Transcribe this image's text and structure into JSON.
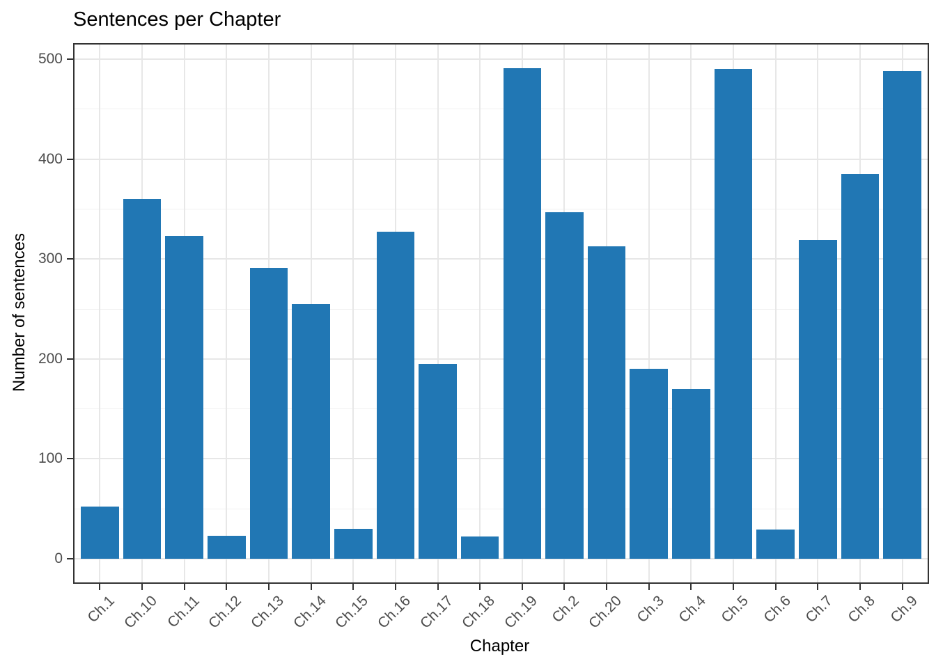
{
  "title": "Sentences per Chapter",
  "chart_data": {
    "type": "bar",
    "title": "Sentences per Chapter",
    "xlabel": "Chapter",
    "ylabel": "Number of sentences",
    "categories": [
      "Ch.1",
      "Ch.10",
      "Ch.11",
      "Ch.12",
      "Ch.13",
      "Ch.14",
      "Ch.15",
      "Ch.16",
      "Ch.17",
      "Ch.18",
      "Ch.19",
      "Ch.2",
      "Ch.20",
      "Ch.3",
      "Ch.4",
      "Ch.5",
      "Ch.6",
      "Ch.7",
      "Ch.8",
      "Ch.9"
    ],
    "values": [
      52,
      360,
      323,
      23,
      291,
      255,
      30,
      327,
      195,
      22,
      491,
      347,
      313,
      190,
      170,
      490,
      29,
      319,
      385,
      488
    ],
    "ylim": [
      0,
      500
    ],
    "yticks": [
      0,
      100,
      200,
      300,
      400,
      500
    ],
    "yticks_minor": [
      50,
      150,
      250,
      350,
      450
    ],
    "grid": true,
    "legend": false,
    "colors": {
      "bar": "#2177b4",
      "tick_label": "#4d4d4d",
      "axis_title": "#000000",
      "panel_border": "#333333",
      "grid_major": "#e7e7e7",
      "grid_minor": "#f0f0f0"
    }
  }
}
